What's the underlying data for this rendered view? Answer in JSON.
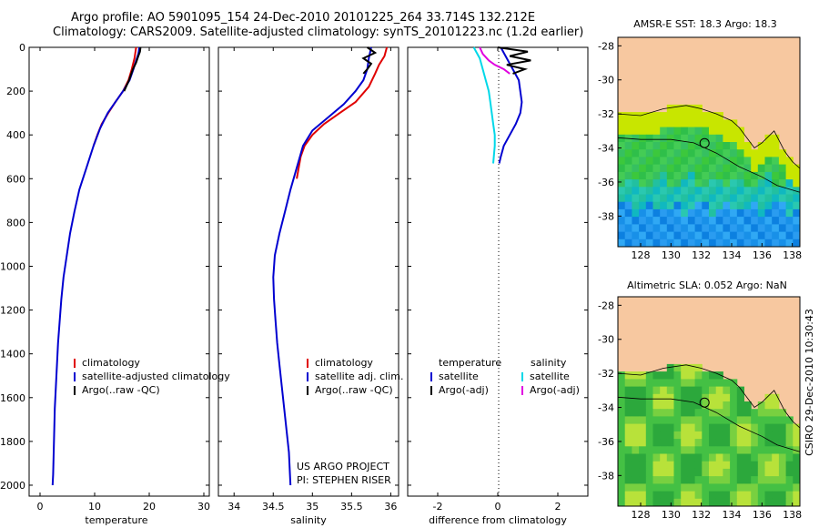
{
  "header": {
    "line1": "Argo profile: AO 5901095_154 24-Dec-2010 20101225_264 33.714S 132.212E",
    "line2": "Climatology: CARS2009. Satellite-adjusted climatology: synTS_20101223.nc (1.2d earlier)"
  },
  "colors": {
    "climatology": "#e00000",
    "satellite": "#0000d0",
    "argo": "#000000",
    "sat_salinity": "#00d8e8",
    "argo_salinity": "#e000e0",
    "land": "#f7c8a0"
  },
  "chart_data": [
    {
      "type": "line",
      "xlabel": "temperature",
      "xlim": [
        -2,
        31
      ],
      "ylim": [
        2050,
        0
      ],
      "xticks": [
        "0",
        "10",
        "20",
        "30"
      ],
      "yticks": [
        "0",
        "200",
        "400",
        "600",
        "800",
        "1000",
        "1200",
        "1400",
        "1600",
        "1800",
        "2000"
      ],
      "legend": [
        "climatology",
        "satellite-adjusted climatology",
        "Argo(..raw -QC)"
      ],
      "series": [
        {
          "name": "climatology",
          "color": "#e00000",
          "x": [
            17.6,
            17.3,
            16.8,
            16.2,
            15.2,
            13.8,
            12.5,
            11.3,
            10.5,
            9.8
          ],
          "y": [
            0,
            50,
            100,
            150,
            200,
            250,
            300,
            350,
            400,
            450
          ]
        },
        {
          "name": "satellite-adjusted climatology",
          "color": "#0000d0",
          "x": [
            18.2,
            18.0,
            17.6,
            17.1,
            16.4,
            15.2,
            13.8,
            12.4,
            11.0,
            9.8,
            8.5,
            7.2,
            6.3,
            5.5,
            4.9,
            4.3,
            3.9,
            3.6,
            3.3,
            3.1,
            2.9,
            2.7,
            2.6,
            2.5,
            2.4,
            2.3
          ],
          "y": [
            0,
            30,
            60,
            100,
            150,
            200,
            250,
            300,
            370,
            450,
            550,
            650,
            750,
            850,
            950,
            1050,
            1150,
            1250,
            1350,
            1450,
            1550,
            1650,
            1750,
            1850,
            1950,
            2000
          ]
        },
        {
          "name": "Argo(..raw -QC)",
          "color": "#000000",
          "x": [
            18.4,
            18.3,
            18.0,
            17.6,
            17.0,
            16.3,
            15.4
          ],
          "y": [
            0,
            20,
            40,
            70,
            100,
            150,
            200
          ]
        }
      ]
    },
    {
      "type": "line",
      "xlabel": "salinity",
      "xlim": [
        33.8,
        36.1
      ],
      "ylim": [
        2050,
        0
      ],
      "xticks": [
        "34",
        "34.5",
        "35",
        "35.5",
        "36"
      ],
      "legend": [
        "climatology",
        "satellite adj. clim.",
        "Argo(..raw -QC)"
      ],
      "annotation": [
        "US ARGO PROJECT",
        "PI: STEPHEN RISER"
      ],
      "series": [
        {
          "name": "climatology",
          "color": "#e00000",
          "x": [
            35.95,
            35.92,
            35.85,
            35.8,
            35.72,
            35.55,
            35.35,
            35.15,
            35.0,
            34.9,
            34.85,
            34.8
          ],
          "y": [
            0,
            40,
            80,
            120,
            180,
            250,
            300,
            350,
            400,
            450,
            500,
            600
          ]
        },
        {
          "name": "satellite adj. clim.",
          "color": "#0000d0",
          "x": [
            35.75,
            35.72,
            35.7,
            35.65,
            35.55,
            35.4,
            35.2,
            35.0,
            34.88,
            34.8,
            34.72,
            34.65,
            34.58,
            34.52,
            34.5,
            34.51,
            34.53,
            34.55,
            34.58,
            34.61,
            34.64,
            34.67,
            34.7,
            34.72
          ],
          "y": [
            0,
            50,
            100,
            150,
            200,
            260,
            320,
            380,
            450,
            550,
            650,
            750,
            850,
            950,
            1050,
            1150,
            1250,
            1350,
            1450,
            1550,
            1650,
            1750,
            1850,
            2000
          ]
        },
        {
          "name": "Argo(..raw -QC)",
          "color": "#000000",
          "x": [
            35.7,
            35.8,
            35.65,
            35.75,
            35.7,
            35.65
          ],
          "y": [
            0,
            25,
            50,
            75,
            100,
            120
          ]
        }
      ]
    },
    {
      "type": "line",
      "xlabel": "difference from climatology",
      "xlim": [
        -3,
        3
      ],
      "ylim": [
        2050,
        0
      ],
      "xticks": [
        "-2",
        "0",
        "2"
      ],
      "legend_temperature": [
        "temperature",
        "satellite",
        "Argo(-adj)"
      ],
      "legend_salinity": [
        "salinity",
        "satellite",
        "Argo(-adj)"
      ],
      "series": [
        {
          "name": "satellite",
          "color": "#0000d0",
          "x": [
            0.1,
            0.3,
            0.5,
            0.7,
            0.8,
            0.75,
            0.6,
            0.4,
            0.2,
            0.1,
            0.05
          ],
          "y": [
            0,
            50,
            100,
            150,
            250,
            300,
            350,
            400,
            450,
            500,
            530
          ]
        },
        {
          "name": "Argo(-adj)",
          "color": "#000000",
          "x": [
            0.0,
            1.0,
            0.4,
            1.1,
            0.3,
            0.9,
            0.5
          ],
          "y": [
            0,
            20,
            40,
            60,
            80,
            100,
            120
          ]
        },
        {
          "name": "satellite",
          "color": "#00d8e8",
          "x": [
            -0.8,
            -0.6,
            -0.5,
            -0.4,
            -0.3,
            -0.25,
            -0.2,
            -0.15,
            -0.1,
            -0.1,
            -0.15
          ],
          "y": [
            0,
            50,
            100,
            150,
            200,
            250,
            300,
            350,
            400,
            450,
            530
          ]
        },
        {
          "name": "Argo(-adj)",
          "color": "#e000e0",
          "x": [
            -0.6,
            -0.5,
            -0.3,
            -0.1,
            0.2,
            0.4
          ],
          "y": [
            0,
            30,
            60,
            80,
            100,
            120
          ]
        }
      ]
    },
    {
      "type": "heatmap",
      "title": "AMSR-E SST: 18.3 Argo: 18.3",
      "xlim": [
        126.5,
        138.5
      ],
      "ylim": [
        -39.8,
        -27.5
      ],
      "xticks": [
        "128",
        "130",
        "132",
        "134",
        "136",
        "138"
      ],
      "yticks": [
        "-28",
        "-30",
        "-32",
        "-34",
        "-36",
        "-38"
      ],
      "profile_location": {
        "lon": 132.212,
        "lat": -33.714
      }
    },
    {
      "type": "heatmap",
      "title": "Altimetric SLA: 0.052 Argo: NaN",
      "xlim": [
        126.5,
        138.5
      ],
      "ylim": [
        -39.8,
        -27.5
      ],
      "xticks": [
        "128",
        "130",
        "132",
        "134",
        "136",
        "138"
      ],
      "yticks": [
        "-28",
        "-30",
        "-32",
        "-34",
        "-36",
        "-38"
      ],
      "profile_location": {
        "lon": 132.212,
        "lat": -33.714
      }
    }
  ],
  "side_label": "CSIRO 29-Dec-2010 10:30:43"
}
